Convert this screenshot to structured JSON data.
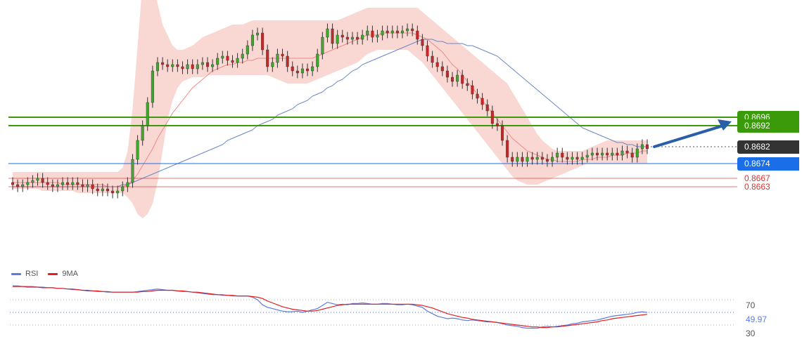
{
  "chart_data": {
    "type": "candlestick",
    "price_levels": [
      {
        "value": 0.8696,
        "label": "0.8696",
        "color": "#3a9a0a",
        "style": "tag"
      },
      {
        "value": 0.8692,
        "label": "0.8692",
        "color": "#3a9a0a",
        "style": "tag"
      },
      {
        "value": 0.8682,
        "label": "0.8682",
        "color": "#333333",
        "style": "tag"
      },
      {
        "value": 0.8674,
        "label": "0.8674",
        "color": "#1a6ee8",
        "style": "tag"
      },
      {
        "value": 0.8667,
        "label": "0.8667",
        "color": "#e03030",
        "style": "plain"
      },
      {
        "value": 0.8663,
        "label": "0.8663",
        "color": "#e03030",
        "style": "plain"
      }
    ],
    "candles": [
      [
        0.8665,
        0.8664
      ],
      [
        0.8664,
        0.8663
      ],
      [
        0.8663,
        0.8664
      ],
      [
        0.8664,
        0.8665
      ],
      [
        0.8665,
        0.8666
      ],
      [
        0.8666,
        0.8667
      ],
      [
        0.8667,
        0.8665
      ],
      [
        0.8665,
        0.8664
      ],
      [
        0.8664,
        0.8663
      ],
      [
        0.8663,
        0.8664
      ],
      [
        0.8664,
        0.8665
      ],
      [
        0.8665,
        0.8664
      ],
      [
        0.8664,
        0.8665
      ],
      [
        0.8665,
        0.8664
      ],
      [
        0.8664,
        0.8663
      ],
      [
        0.8663,
        0.8664
      ],
      [
        0.8664,
        0.8662
      ],
      [
        0.8662,
        0.8661
      ],
      [
        0.8661,
        0.8662
      ],
      [
        0.8662,
        0.8661
      ],
      [
        0.8661,
        0.866
      ],
      [
        0.866,
        0.8661
      ],
      [
        0.8661,
        0.8663
      ],
      [
        0.8663,
        0.8665
      ],
      [
        0.8665,
        0.8676
      ],
      [
        0.8676,
        0.8685
      ],
      [
        0.8685,
        0.8692
      ],
      [
        0.8692,
        0.8703
      ],
      [
        0.8703,
        0.8718
      ],
      [
        0.8718,
        0.8722
      ],
      [
        0.8722,
        0.8721
      ],
      [
        0.8721,
        0.872
      ],
      [
        0.872,
        0.8721
      ],
      [
        0.8721,
        0.872
      ],
      [
        0.872,
        0.8719
      ],
      [
        0.8719,
        0.8721
      ],
      [
        0.8721,
        0.8719
      ],
      [
        0.8719,
        0.8721
      ],
      [
        0.8721,
        0.8722
      ],
      [
        0.8722,
        0.872
      ],
      [
        0.872,
        0.8721
      ],
      [
        0.8721,
        0.8724
      ],
      [
        0.8724,
        0.8725
      ],
      [
        0.8725,
        0.8723
      ],
      [
        0.8723,
        0.8722
      ],
      [
        0.8722,
        0.8724
      ],
      [
        0.8724,
        0.8726
      ],
      [
        0.8726,
        0.873
      ],
      [
        0.873,
        0.8735
      ],
      [
        0.8735,
        0.8736
      ],
      [
        0.8736,
        0.8728
      ],
      [
        0.8728,
        0.872
      ],
      [
        0.872,
        0.8722
      ],
      [
        0.8722,
        0.8726
      ],
      [
        0.8726,
        0.8725
      ],
      [
        0.8725,
        0.872
      ],
      [
        0.872,
        0.8718
      ],
      [
        0.8718,
        0.8717
      ],
      [
        0.8717,
        0.8719
      ],
      [
        0.8719,
        0.8718
      ],
      [
        0.8718,
        0.872
      ],
      [
        0.872,
        0.8726
      ],
      [
        0.8726,
        0.8734
      ],
      [
        0.8734,
        0.8738
      ],
      [
        0.8738,
        0.8731
      ],
      [
        0.8731,
        0.8735
      ],
      [
        0.8735,
        0.8734
      ],
      [
        0.8734,
        0.8733
      ],
      [
        0.8733,
        0.8734
      ],
      [
        0.8734,
        0.8733
      ],
      [
        0.8733,
        0.8735
      ],
      [
        0.8735,
        0.8737
      ],
      [
        0.8737,
        0.8734
      ],
      [
        0.8734,
        0.8735
      ],
      [
        0.8735,
        0.8737
      ],
      [
        0.8737,
        0.8736
      ],
      [
        0.8736,
        0.8737
      ],
      [
        0.8737,
        0.8736
      ],
      [
        0.8736,
        0.8737
      ],
      [
        0.8737,
        0.8738
      ],
      [
        0.8738,
        0.8737
      ],
      [
        0.8737,
        0.8733
      ],
      [
        0.8733,
        0.873
      ],
      [
        0.873,
        0.8725
      ],
      [
        0.8725,
        0.8722
      ],
      [
        0.8722,
        0.872
      ],
      [
        0.872,
        0.8718
      ],
      [
        0.8718,
        0.8715
      ],
      [
        0.8715,
        0.8713
      ],
      [
        0.8713,
        0.8716
      ],
      [
        0.8716,
        0.8712
      ],
      [
        0.8712,
        0.8711
      ],
      [
        0.8711,
        0.8707
      ],
      [
        0.8707,
        0.8705
      ],
      [
        0.8705,
        0.8702
      ],
      [
        0.8702,
        0.8699
      ],
      [
        0.8699,
        0.8693
      ],
      [
        0.8693,
        0.8692
      ],
      [
        0.8692,
        0.8685
      ],
      [
        0.8685,
        0.8677
      ],
      [
        0.8677,
        0.8675
      ],
      [
        0.8675,
        0.8677
      ],
      [
        0.8677,
        0.8675
      ],
      [
        0.8675,
        0.8677
      ],
      [
        0.8677,
        0.8676
      ],
      [
        0.8676,
        0.8677
      ],
      [
        0.8677,
        0.8676
      ],
      [
        0.8676,
        0.8675
      ],
      [
        0.8675,
        0.8677
      ],
      [
        0.8677,
        0.8679
      ],
      [
        0.8679,
        0.8677
      ],
      [
        0.8677,
        0.8676
      ],
      [
        0.8676,
        0.8677
      ],
      [
        0.8677,
        0.8676
      ],
      [
        0.8676,
        0.8677
      ],
      [
        0.8677,
        0.8678
      ],
      [
        0.8678,
        0.8679
      ],
      [
        0.8679,
        0.8678
      ],
      [
        0.8678,
        0.8679
      ],
      [
        0.8679,
        0.8678
      ],
      [
        0.8678,
        0.8679
      ],
      [
        0.8679,
        0.8678
      ],
      [
        0.8678,
        0.868
      ],
      [
        0.868,
        0.8679
      ],
      [
        0.8679,
        0.8677
      ],
      [
        0.8677,
        0.8681
      ],
      [
        0.8681,
        0.8683
      ],
      [
        0.8683,
        0.8681
      ]
    ],
    "bollinger_band": {
      "upper": [
        0.867,
        0.867,
        0.867,
        0.867,
        0.867,
        0.867,
        0.867,
        0.867,
        0.867,
        0.867,
        0.867,
        0.867,
        0.867,
        0.867,
        0.867,
        0.867,
        0.867,
        0.867,
        0.867,
        0.867,
        0.867,
        0.867,
        0.8672,
        0.868,
        0.87,
        0.873,
        0.876,
        0.877,
        0.8765,
        0.875,
        0.874,
        0.8735,
        0.873,
        0.8728,
        0.8728,
        0.8729,
        0.873,
        0.8732,
        0.8734,
        0.8735,
        0.8736,
        0.8737,
        0.8738,
        0.8739,
        0.874,
        0.874,
        0.874,
        0.8741,
        0.8742,
        0.8742,
        0.8742,
        0.8742,
        0.8742,
        0.8742,
        0.8742,
        0.8742,
        0.8742,
        0.8742,
        0.8742,
        0.8742,
        0.8742,
        0.8742,
        0.8742,
        0.8742,
        0.8742,
        0.8742,
        0.8743,
        0.8744,
        0.8745,
        0.8746,
        0.8747,
        0.8748,
        0.8748,
        0.8748,
        0.8748,
        0.8748,
        0.8748,
        0.8748,
        0.8748,
        0.8748,
        0.8748,
        0.8748,
        0.8746,
        0.8744,
        0.8742,
        0.874,
        0.8738,
        0.8736,
        0.8734,
        0.8732,
        0.873,
        0.8728,
        0.8726,
        0.8724,
        0.8722,
        0.872,
        0.8718,
        0.8716,
        0.8714,
        0.8712,
        0.8708,
        0.8704,
        0.87,
        0.8696,
        0.8692,
        0.8688,
        0.8685,
        0.8683,
        0.8681,
        0.868,
        0.868,
        0.868,
        0.868,
        0.868,
        0.868,
        0.8681,
        0.8682,
        0.8683,
        0.8684,
        0.8685,
        0.8685,
        0.8685,
        0.8685,
        0.8685,
        0.8685,
        0.8685,
        0.8685,
        0.8685
      ],
      "lower": [
        0.8662,
        0.8662,
        0.8662,
        0.8662,
        0.8662,
        0.8662,
        0.8661,
        0.8661,
        0.8661,
        0.8661,
        0.8661,
        0.8661,
        0.8661,
        0.866,
        0.866,
        0.866,
        0.866,
        0.866,
        0.866,
        0.866,
        0.866,
        0.866,
        0.866,
        0.8658,
        0.8655,
        0.865,
        0.8648,
        0.865,
        0.8655,
        0.8665,
        0.868,
        0.8695,
        0.8704,
        0.871,
        0.8713,
        0.8714,
        0.8715,
        0.8715,
        0.8715,
        0.8716,
        0.8716,
        0.8716,
        0.8716,
        0.8716,
        0.8716,
        0.8716,
        0.8716,
        0.8716,
        0.8716,
        0.8716,
        0.8716,
        0.8716,
        0.8715,
        0.8714,
        0.8713,
        0.8712,
        0.8712,
        0.8712,
        0.8712,
        0.8712,
        0.8713,
        0.8714,
        0.8715,
        0.8716,
        0.8717,
        0.8718,
        0.8719,
        0.872,
        0.8721,
        0.8722,
        0.8724,
        0.8726,
        0.8727,
        0.8728,
        0.8728,
        0.8728,
        0.8728,
        0.8728,
        0.8728,
        0.8728,
        0.8726,
        0.8724,
        0.8722,
        0.8719,
        0.8716,
        0.8713,
        0.871,
        0.8707,
        0.8704,
        0.8701,
        0.8698,
        0.8695,
        0.8692,
        0.8689,
        0.8686,
        0.8683,
        0.868,
        0.8677,
        0.8674,
        0.8671,
        0.8668,
        0.8666,
        0.8665,
        0.8664,
        0.8664,
        0.8664,
        0.8665,
        0.8666,
        0.8667,
        0.8668,
        0.8669,
        0.867,
        0.8671,
        0.8672,
        0.8673,
        0.8674,
        0.8674,
        0.8674,
        0.8674,
        0.8674,
        0.8674,
        0.8674,
        0.8674,
        0.8674,
        0.8674,
        0.8674,
        0.8674,
        0.8674
      ]
    },
    "ma_red": [
      0.8665,
      0.8665,
      0.8665,
      0.8665,
      0.8665,
      0.8665,
      0.8665,
      0.8665,
      0.8665,
      0.8665,
      0.8664,
      0.8664,
      0.8664,
      0.8664,
      0.8664,
      0.8664,
      0.8664,
      0.8664,
      0.8664,
      0.8663,
      0.8663,
      0.8663,
      0.8663,
      0.8664,
      0.8666,
      0.8669,
      0.8673,
      0.8677,
      0.8681,
      0.8686,
      0.869,
      0.8694,
      0.8698,
      0.8701,
      0.8704,
      0.8707,
      0.871,
      0.8712,
      0.8714,
      0.8716,
      0.8718,
      0.8719,
      0.872,
      0.8721,
      0.8721,
      0.8722,
      0.8722,
      0.8723,
      0.8723,
      0.8724,
      0.8724,
      0.8724,
      0.8724,
      0.8724,
      0.8724,
      0.8724,
      0.8724,
      0.8724,
      0.8724,
      0.8724,
      0.8724,
      0.8725,
      0.8726,
      0.8727,
      0.8728,
      0.8729,
      0.873,
      0.8731,
      0.8732,
      0.8733,
      0.8734,
      0.8735,
      0.8735,
      0.8735,
      0.8736,
      0.8736,
      0.8736,
      0.8736,
      0.8736,
      0.8736,
      0.8736,
      0.8735,
      0.8734,
      0.8733,
      0.8731,
      0.8729,
      0.8727,
      0.8724,
      0.8721,
      0.8719,
      0.8716,
      0.8713,
      0.871,
      0.8707,
      0.8704,
      0.8701,
      0.8698,
      0.8695,
      0.8692,
      0.8689,
      0.8686,
      0.8684,
      0.8682,
      0.868,
      0.8679,
      0.8678,
      0.8677,
      0.8676,
      0.8676,
      0.8675,
      0.8675,
      0.8675,
      0.8675,
      0.8675,
      0.8676,
      0.8676,
      0.8676,
      0.8677,
      0.8677,
      0.8677,
      0.8678,
      0.8678,
      0.8678,
      0.8679,
      0.8679,
      0.8679,
      0.868,
      0.868
    ],
    "ma_blue": [
      0.8663,
      0.8663,
      0.8663,
      0.8663,
      0.8663,
      0.8663,
      0.8663,
      0.8663,
      0.8663,
      0.8663,
      0.8663,
      0.8663,
      0.8663,
      0.8663,
      0.8663,
      0.8663,
      0.8663,
      0.8663,
      0.8663,
      0.8663,
      0.8663,
      0.8663,
      0.8664,
      0.8664,
      0.8665,
      0.8666,
      0.8667,
      0.8668,
      0.8669,
      0.867,
      0.8671,
      0.8672,
      0.8673,
      0.8674,
      0.8675,
      0.8676,
      0.8677,
      0.8678,
      0.8679,
      0.868,
      0.8681,
      0.8682,
      0.8683,
      0.8685,
      0.8686,
      0.8687,
      0.8688,
      0.8689,
      0.869,
      0.8692,
      0.8693,
      0.8694,
      0.8695,
      0.8697,
      0.8698,
      0.8699,
      0.87,
      0.8702,
      0.8703,
      0.8704,
      0.8706,
      0.8707,
      0.8708,
      0.871,
      0.8711,
      0.8713,
      0.8714,
      0.8716,
      0.8718,
      0.8719,
      0.8721,
      0.8722,
      0.8723,
      0.8724,
      0.8725,
      0.8726,
      0.8727,
      0.8728,
      0.8729,
      0.873,
      0.8731,
      0.8732,
      0.8733,
      0.8733,
      0.8733,
      0.8732,
      0.8732,
      0.8731,
      0.8731,
      0.8731,
      0.8731,
      0.873,
      0.873,
      0.8729,
      0.8728,
      0.8727,
      0.8726,
      0.8725,
      0.8723,
      0.8721,
      0.8719,
      0.8717,
      0.8715,
      0.8713,
      0.8711,
      0.8709,
      0.8707,
      0.8705,
      0.8703,
      0.8701,
      0.8699,
      0.8697,
      0.8695,
      0.8693,
      0.8691,
      0.869,
      0.8689,
      0.8688,
      0.8687,
      0.8686,
      0.8685,
      0.8684,
      0.8684,
      0.8683,
      0.8683,
      0.8682,
      0.8682,
      0.8682
    ],
    "rsi": {
      "legend": [
        {
          "name": "RSI",
          "color": "#5c7be0"
        },
        {
          "name": "9MA",
          "color": "#e02020"
        }
      ],
      "levels": [
        {
          "value": 70,
          "label": "70"
        },
        {
          "value": 30,
          "label": "30"
        }
      ],
      "current_value": 49.97,
      "current_label": "49.97",
      "rsi": [
        92,
        92,
        91,
        91,
        91,
        90,
        90,
        89,
        89,
        88,
        88,
        87,
        86,
        86,
        85,
        84,
        84,
        83,
        83,
        82,
        82,
        82,
        82,
        82,
        82,
        83,
        84,
        85,
        86,
        87,
        86,
        85,
        85,
        84,
        83,
        83,
        82,
        81,
        80,
        79,
        78,
        78,
        77,
        77,
        76,
        76,
        76,
        76,
        74,
        70,
        62,
        58,
        56,
        54,
        52,
        51,
        51,
        52,
        50,
        52,
        54,
        56,
        61,
        66,
        64,
        62,
        63,
        62,
        64,
        64,
        65,
        64,
        63,
        63,
        64,
        64,
        63,
        62,
        62,
        63,
        62,
        60,
        58,
        52,
        48,
        44,
        42,
        40,
        41,
        40,
        38,
        37,
        38,
        37,
        36,
        35,
        35,
        34,
        32,
        30,
        29,
        28,
        26,
        25,
        25,
        25,
        27,
        28,
        27,
        28,
        29,
        30,
        32,
        33,
        35,
        36,
        37,
        38,
        40,
        42,
        44,
        45,
        46,
        47,
        48,
        50,
        51,
        50
      ],
      "ma": [
        91,
        91,
        91,
        90,
        90,
        90,
        89,
        89,
        89,
        88,
        88,
        87,
        87,
        86,
        85,
        85,
        84,
        84,
        83,
        83,
        82,
        82,
        82,
        82,
        82,
        82,
        83,
        83,
        84,
        85,
        85,
        85,
        85,
        84,
        84,
        83,
        82,
        82,
        81,
        80,
        79,
        78,
        78,
        77,
        77,
        76,
        76,
        76,
        75,
        74,
        72,
        68,
        65,
        62,
        59,
        57,
        55,
        54,
        53,
        52,
        52,
        53,
        55,
        57,
        59,
        61,
        62,
        63,
        63,
        63,
        63,
        63,
        63,
        63,
        63,
        63,
        63,
        63,
        63,
        63,
        63,
        62,
        61,
        59,
        57,
        54,
        51,
        48,
        46,
        44,
        42,
        41,
        39,
        38,
        37,
        36,
        35,
        34,
        33,
        32,
        31,
        30,
        29,
        28,
        27,
        27,
        26,
        26,
        27,
        27,
        28,
        29,
        30,
        31,
        32,
        33,
        34,
        35,
        37,
        38,
        40,
        41,
        42,
        43,
        44,
        45,
        46,
        47
      ]
    },
    "annotation_arrow": {
      "color": "#2a5fa8",
      "from_value": 0.8682,
      "to_value": 0.8694
    }
  }
}
